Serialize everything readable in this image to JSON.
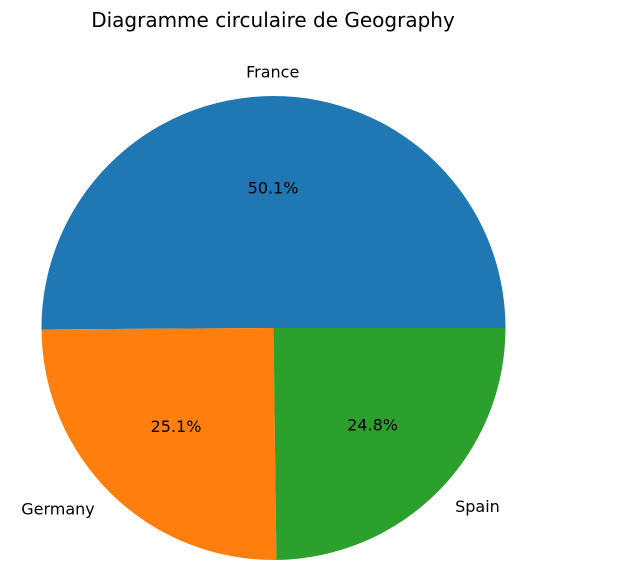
{
  "chart_data": {
    "type": "pie",
    "title": "Diagramme circulaire de Geography",
    "categories": [
      "France",
      "Germany",
      "Spain"
    ],
    "values": [
      50.1,
      25.1,
      24.8
    ],
    "labels": [
      "50.1%",
      "25.1%",
      "24.8%"
    ],
    "colors": [
      "#1f77b4",
      "#ff7f0e",
      "#2ca02c"
    ],
    "start_angle_deg": 0,
    "direction": "counterclockwise"
  }
}
